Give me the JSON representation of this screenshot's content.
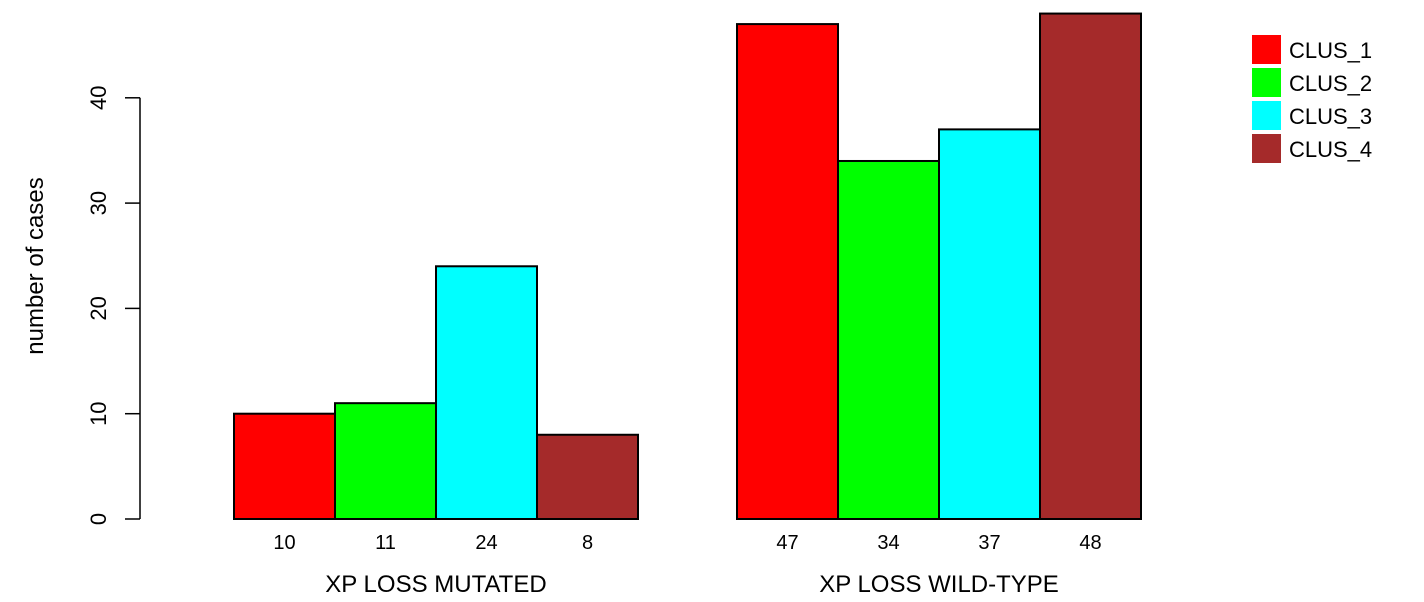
{
  "chart_data": {
    "type": "bar",
    "title": "",
    "xlabel": "",
    "ylabel": "number of cases",
    "ylim": [
      0,
      48
    ],
    "yticks": [
      0,
      10,
      20,
      30,
      40
    ],
    "grid": false,
    "legend_position": "top-right",
    "categories": [
      "XP LOSS MUTATED",
      "XP LOSS WILD-TYPE"
    ],
    "series": [
      {
        "name": "CLUS_1",
        "color": "#ff0000",
        "values": [
          10,
          47
        ]
      },
      {
        "name": "CLUS_2",
        "color": "#00ff00",
        "values": [
          11,
          34
        ]
      },
      {
        "name": "CLUS_3",
        "color": "#00ffff",
        "values": [
          24,
          37
        ]
      },
      {
        "name": "CLUS_4",
        "color": "#a52a2a",
        "values": [
          8,
          48
        ]
      }
    ]
  }
}
